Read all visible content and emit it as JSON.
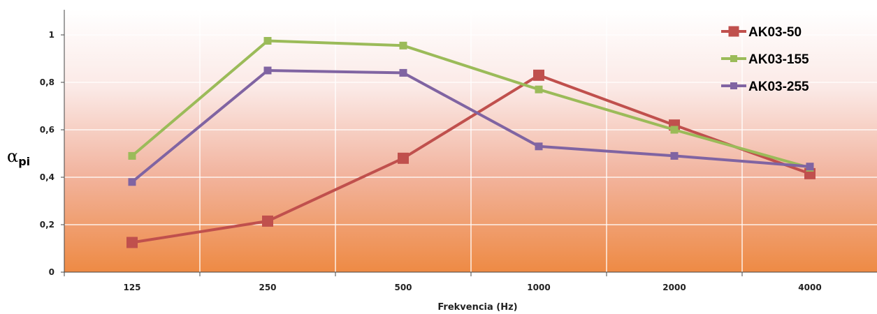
{
  "chart_data": {
    "type": "line",
    "categories": [
      "125",
      "250",
      "500",
      "1000",
      "2000",
      "4000"
    ],
    "series": [
      {
        "name": "AK03-50",
        "color": "#c0504d",
        "marker": "square-large",
        "values": [
          0.125,
          0.215,
          0.48,
          0.83,
          0.62,
          0.415
        ]
      },
      {
        "name": "AK03-155",
        "color": "#9bbb59",
        "marker": "square-small",
        "values": [
          0.49,
          0.975,
          0.955,
          0.77,
          0.6,
          0.44
        ]
      },
      {
        "name": "AK03-255",
        "color": "#8064a2",
        "marker": "square-small",
        "values": [
          0.38,
          0.85,
          0.84,
          0.53,
          0.49,
          0.445
        ]
      }
    ],
    "title": "",
    "xlabel": "Frekvencia (Hz)",
    "ylabel": {
      "main": "α",
      "sub": "pi"
    },
    "ylim": [
      0,
      1.1
    ],
    "yticks": [
      0,
      0.2,
      0.4,
      0.6,
      0.8,
      1
    ],
    "ytick_labels": [
      "0",
      "0,2",
      "0,4",
      "0,6",
      "0,8",
      "1"
    ],
    "grid": true,
    "legend_position": "top-right",
    "background_gradient": [
      "#ffffff",
      "#ee8a44"
    ]
  }
}
